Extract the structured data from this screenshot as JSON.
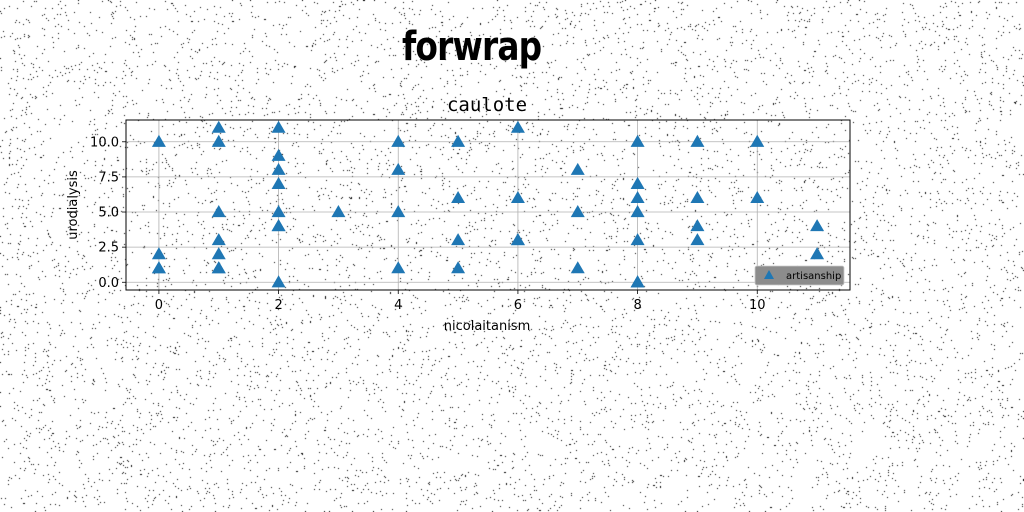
{
  "suptitle": "forwrap",
  "chart_data": {
    "type": "scatter",
    "title": "caulote",
    "xlabel": "nicolaitanism",
    "ylabel": "urodialysis",
    "xlim": [
      -0.55,
      11.55
    ],
    "ylim": [
      -0.55,
      11.55
    ],
    "xticks": [
      0,
      2,
      4,
      6,
      8,
      10
    ],
    "yticks": [
      0.0,
      2.5,
      5.0,
      7.5,
      10.0
    ],
    "ytick_labels": [
      "0.0",
      "2.5",
      "5.0",
      "7.5",
      "10.0"
    ],
    "grid": true,
    "legend_position": "lower right",
    "series": [
      {
        "name": "artisanship",
        "marker": "triangle-up",
        "color": "#1f77b4",
        "x": [
          0,
          0,
          0,
          0,
          1,
          1,
          1,
          1,
          1,
          1,
          1,
          2,
          2,
          2,
          2,
          2,
          2,
          2,
          2,
          3,
          4,
          4,
          4,
          4,
          5,
          5,
          5,
          5,
          6,
          6,
          6,
          6,
          7,
          7,
          7,
          8,
          8,
          8,
          8,
          8,
          8,
          8,
          9,
          9,
          9,
          9,
          10,
          10,
          11,
          11
        ],
        "y": [
          10,
          2,
          1,
          1,
          11,
          10,
          5,
          3,
          2,
          1,
          1,
          11,
          9,
          8,
          7,
          5,
          4,
          4,
          0,
          5,
          10,
          8,
          5,
          1,
          10,
          6,
          3,
          1,
          11,
          6,
          3,
          3,
          8,
          5,
          1,
          10,
          7,
          6,
          5,
          3,
          0,
          0,
          10,
          6,
          4,
          3,
          10,
          6,
          4,
          2
        ]
      }
    ]
  }
}
